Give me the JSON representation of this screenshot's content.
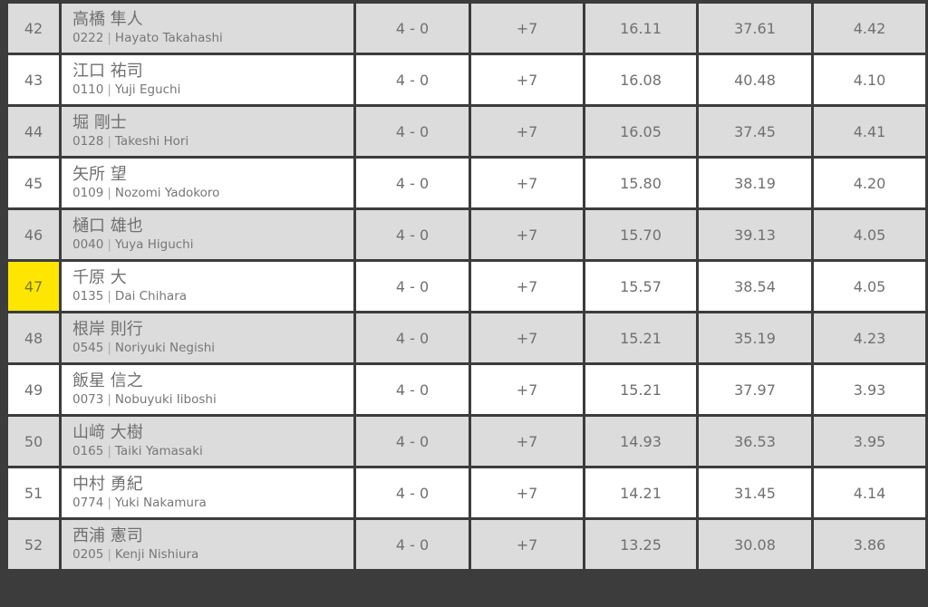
{
  "rows": [
    {
      "rank": "42",
      "name_jp": "高橋 隼人",
      "id": "0222",
      "name_en": "Hayato Takahashi",
      "record": "4 - 0",
      "diff": "+7",
      "v1": "16.11",
      "v2": "37.61",
      "v3": "4.42"
    },
    {
      "rank": "43",
      "name_jp": "江口 祐司",
      "id": "0110",
      "name_en": "Yuji Eguchi",
      "record": "4 - 0",
      "diff": "+7",
      "v1": "16.08",
      "v2": "40.48",
      "v3": "4.10"
    },
    {
      "rank": "44",
      "name_jp": "堀 剛士",
      "id": "0128",
      "name_en": "Takeshi Hori",
      "record": "4 - 0",
      "diff": "+7",
      "v1": "16.05",
      "v2": "37.45",
      "v3": "4.41"
    },
    {
      "rank": "45",
      "name_jp": "矢所 望",
      "id": "0109",
      "name_en": "Nozomi Yadokoro",
      "record": "4 - 0",
      "diff": "+7",
      "v1": "15.80",
      "v2": "38.19",
      "v3": "4.20"
    },
    {
      "rank": "46",
      "name_jp": "樋口 雄也",
      "id": "0040",
      "name_en": "Yuya Higuchi",
      "record": "4 - 0",
      "diff": "+7",
      "v1": "15.70",
      "v2": "39.13",
      "v3": "4.05"
    },
    {
      "rank": "47",
      "name_jp": "千原 大",
      "id": "0135",
      "name_en": "Dai Chihara",
      "record": "4 - 0",
      "diff": "+7",
      "v1": "15.57",
      "v2": "38.54",
      "v3": "4.05",
      "highlight": true
    },
    {
      "rank": "48",
      "name_jp": "根岸 則行",
      "id": "0545",
      "name_en": "Noriyuki Negishi",
      "record": "4 - 0",
      "diff": "+7",
      "v1": "15.21",
      "v2": "35.19",
      "v3": "4.23"
    },
    {
      "rank": "49",
      "name_jp": "飯星 信之",
      "id": "0073",
      "name_en": "Nobuyuki Iiboshi",
      "record": "4 - 0",
      "diff": "+7",
      "v1": "15.21",
      "v2": "37.97",
      "v3": "3.93"
    },
    {
      "rank": "50",
      "name_jp": "山﨑 大樹",
      "id": "0165",
      "name_en": "Taiki Yamasaki",
      "record": "4 - 0",
      "diff": "+7",
      "v1": "14.93",
      "v2": "36.53",
      "v3": "3.95"
    },
    {
      "rank": "51",
      "name_jp": "中村 勇紀",
      "id": "0774",
      "name_en": "Yuki Nakamura",
      "record": "4 - 0",
      "diff": "+7",
      "v1": "14.21",
      "v2": "31.45",
      "v3": "4.14"
    },
    {
      "rank": "52",
      "name_jp": "西浦 憲司",
      "id": "0205",
      "name_en": "Kenji Nishiura",
      "record": "4 - 0",
      "diff": "+7",
      "v1": "13.25",
      "v2": "30.08",
      "v3": "3.86"
    }
  ],
  "colors": {
    "highlight": "#ffe600",
    "row_alt": "#dcdcdc",
    "border": "#3c3c3c"
  }
}
